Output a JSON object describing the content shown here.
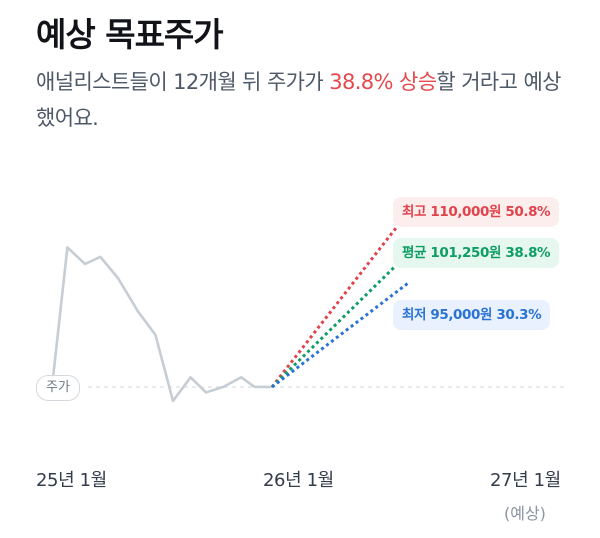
{
  "header": {
    "title": "예상 목표주가",
    "desc_before": "애널리스트들이 12개월 뒤 주가가 ",
    "desc_highlight": "38.8% 상승",
    "desc_after": "할 거라고 예상했어요."
  },
  "colors": {
    "history_line": "#c6cdd3",
    "high": "#e0434b",
    "avg": "#0e9e63",
    "low": "#2a73d5",
    "baseline": "#d9dde2"
  },
  "chart_data": {
    "type": "line",
    "x_ticks": [
      "25년 1월",
      "26년 1월",
      "27년 1월"
    ],
    "x_note": "(예상)",
    "baseline_label": "주가",
    "history": {
      "x": [
        0.0,
        0.07,
        0.15,
        0.22,
        0.3,
        0.39,
        0.47,
        0.55,
        0.63,
        0.7,
        0.78,
        0.86,
        0.92,
        1.0
      ],
      "y": [
        72950,
        102500,
        99000,
        100500,
        96000,
        89000,
        84000,
        70000,
        75000,
        71800,
        73000,
        75000,
        73000,
        72950
      ]
    },
    "forecast": {
      "start_x": 1.0,
      "end_x": 1.62,
      "current_price": 72950,
      "targets": [
        {
          "key": "high",
          "label": "최고 110,000원 50.8%",
          "value": 110000
        },
        {
          "key": "avg",
          "label": "평균 101,250원 38.8%",
          "value": 101250
        },
        {
          "key": "low",
          "label": "최저 95,000원 30.3%",
          "value": 95000
        }
      ]
    }
  }
}
